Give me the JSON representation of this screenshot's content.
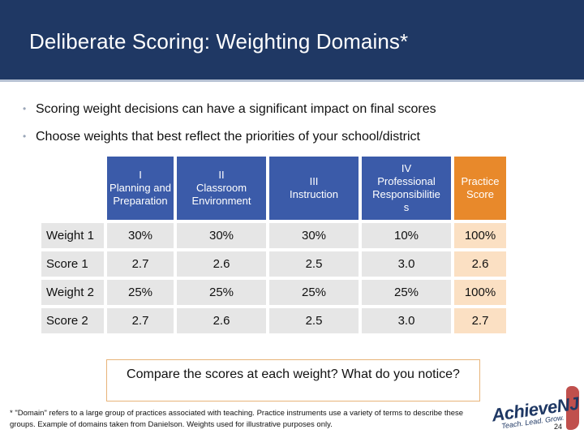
{
  "slide": {
    "title": "Deliberate Scoring: Weighting Domains*",
    "bullets": [
      "Scoring weight decisions can have a significant impact on final scores",
      "Choose weights that best reflect the priorities of your school/district"
    ],
    "callout": "Compare the scores at each weight?  What do you notice?",
    "footnote": "* \"Domain\" refers to a large group of practices associated with teaching.  Practice instruments use a variety of terms to describe these groups. Example of domains taken from Danielson.  Weights used for illustrative purposes only.",
    "logo": {
      "brand": "AchieveNJ",
      "tagline": "Teach. Lead. Grow."
    },
    "page_number": "24"
  },
  "table": {
    "headers": [
      "I\nPlanning and\nPreparation",
      "II\nClassroom\nEnvironment",
      "III\nInstruction",
      "IV\nProfessional\nResponsibilitie\ns",
      "Practice\nScore"
    ],
    "rows": [
      {
        "label": "Weight 1",
        "cells": [
          "30%",
          "30%",
          "30%",
          "10%",
          "100%"
        ]
      },
      {
        "label": "Score 1",
        "cells": [
          "2.7",
          "2.6",
          "2.5",
          "3.0",
          "2.6"
        ]
      },
      {
        "label": "Weight 2",
        "cells": [
          "25%",
          "25%",
          "25%",
          "25%",
          "100%"
        ]
      },
      {
        "label": "Score 2",
        "cells": [
          "2.7",
          "2.6",
          "2.5",
          "3.0",
          "2.7"
        ]
      }
    ]
  },
  "colors": {
    "header_bg": "#1f3864",
    "domain_header": "#3b5ba9",
    "practice_header": "#e8892b",
    "cell_bg": "#e6e6e6",
    "practice_cell": "#fbe0c3"
  }
}
